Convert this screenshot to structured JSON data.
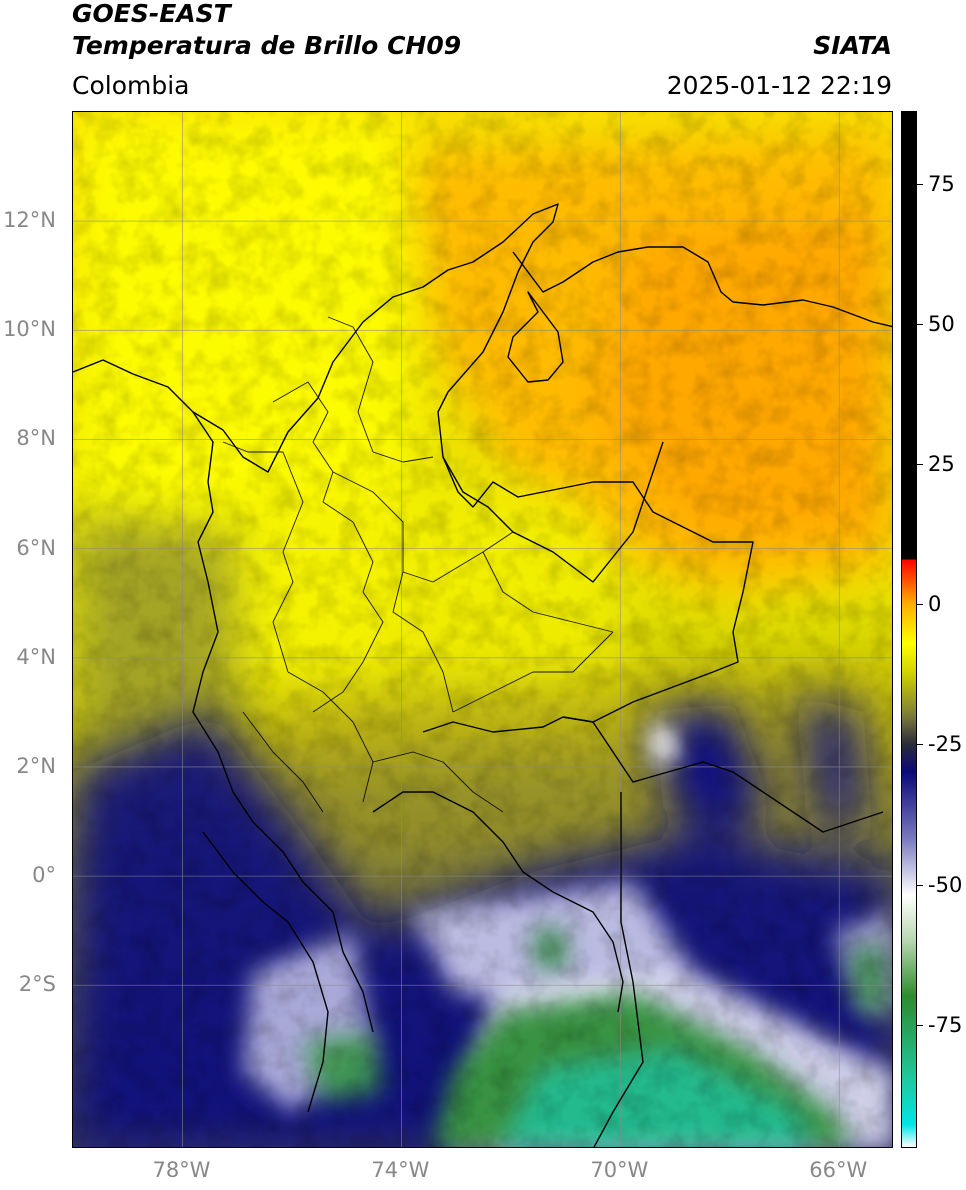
{
  "header": {
    "satellite": "GOES-EAST",
    "product": "Temperatura de Brillo CH09",
    "brand": "SIATA",
    "region": "Colombia",
    "timestamp": "2025-01-12 22:19"
  },
  "map": {
    "lon_range": [
      -80,
      -65
    ],
    "lat_range": [
      -5,
      14
    ],
    "lat_ticks": [
      {
        "value": 12,
        "label": "12°N"
      },
      {
        "value": 10,
        "label": "10°N"
      },
      {
        "value": 8,
        "label": "8°N"
      },
      {
        "value": 6,
        "label": "6°N"
      },
      {
        "value": 4,
        "label": "4°N"
      },
      {
        "value": 2,
        "label": "2°N"
      },
      {
        "value": 0,
        "label": "0°"
      },
      {
        "value": -2,
        "label": "2°S"
      }
    ],
    "lon_ticks": [
      {
        "value": -78,
        "label": "78°W"
      },
      {
        "value": -74,
        "label": "74°W"
      },
      {
        "value": -70,
        "label": "70°W"
      },
      {
        "value": -66,
        "label": "66°W"
      }
    ],
    "grid": true
  },
  "colorbar": {
    "range": [
      -97,
      88
    ],
    "ticks": [
      {
        "value": 75,
        "label": "75"
      },
      {
        "value": 50,
        "label": "50"
      },
      {
        "value": 25,
        "label": "25"
      },
      {
        "value": 0,
        "label": "0"
      },
      {
        "value": -25,
        "label": "-25"
      },
      {
        "value": -50,
        "label": "-50"
      },
      {
        "value": -75,
        "label": "-75"
      }
    ],
    "stops": [
      {
        "value": -97,
        "color": "#ffffff"
      },
      {
        "value": -93,
        "color": "#00e5e5"
      },
      {
        "value": -85,
        "color": "#1fc9a0"
      },
      {
        "value": -70,
        "color": "#2e8b2e"
      },
      {
        "value": -60,
        "color": "#b8d8b0"
      },
      {
        "value": -52,
        "color": "#ffffff"
      },
      {
        "value": -42,
        "color": "#7b7bc0"
      },
      {
        "value": -30,
        "color": "#0a0a7a"
      },
      {
        "value": -25,
        "color": "#2b2b3a"
      },
      {
        "value": -20,
        "color": "#7a7a3a"
      },
      {
        "value": -12,
        "color": "#d4d400"
      },
      {
        "value": -7,
        "color": "#ffff00"
      },
      {
        "value": 0,
        "color": "#ffb000"
      },
      {
        "value": 8,
        "color": "#ff0000"
      },
      {
        "value": 8.01,
        "color": "#000000"
      },
      {
        "value": 88,
        "color": "#000000"
      }
    ]
  }
}
